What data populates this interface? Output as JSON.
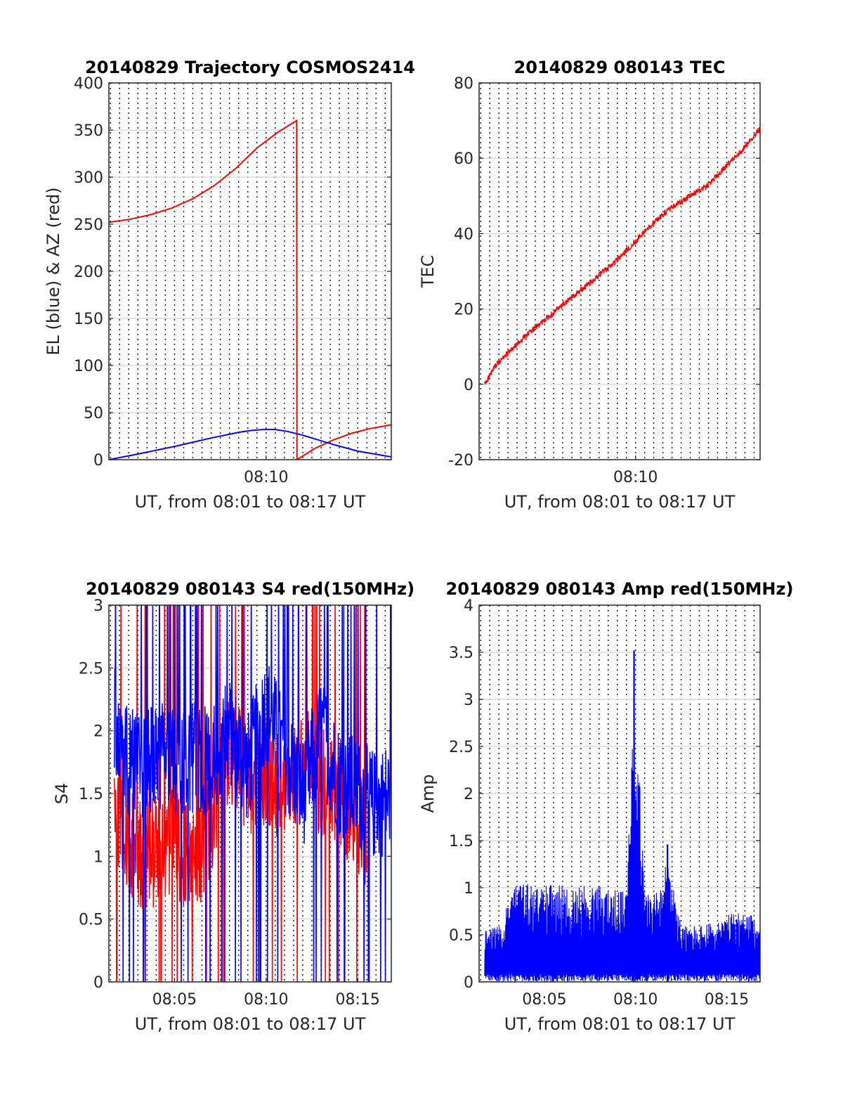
{
  "chart_data": [
    {
      "type": "line",
      "title": "20140829 Trajectory COSMOS2414",
      "xlabel": "UT, from 08:01 to 08:17 UT",
      "ylabel": "EL (blue) & AZ (red)",
      "xlim": [
        "08:01:25",
        "08:16:50"
      ],
      "ylim": [
        0,
        400
      ],
      "yticks": [
        0,
        50,
        100,
        150,
        200,
        250,
        300,
        350,
        400
      ],
      "xticks_labeled": [
        {
          "t": "08:10:00",
          "label": "08:10"
        }
      ],
      "grid": true,
      "series": [
        {
          "color": "#ff0000",
          "x": [
            "08:01:25",
            "08:02:30",
            "08:03:40",
            "08:04:50",
            "08:06:00",
            "08:07:10",
            "08:08:20",
            "08:09:30",
            "08:10:40",
            "08:11:40",
            "08:11:41"
          ],
          "y": [
            252,
            255,
            260,
            267,
            277,
            291,
            309,
            331,
            348,
            360,
            0
          ]
        },
        {
          "color": "#ff0000",
          "x": [
            "08:11:41",
            "08:12:40",
            "08:13:40",
            "08:14:40",
            "08:15:40",
            "08:16:50"
          ],
          "y": [
            0,
            12,
            21,
            28,
            33,
            37
          ]
        },
        {
          "color": "#0000ff",
          "x": [
            "08:01:25",
            "08:03:00",
            "08:05:00",
            "08:07:00",
            "08:08:30",
            "08:09:10",
            "08:09:50",
            "08:10:30",
            "08:11:10",
            "08:12:00",
            "08:13:30",
            "08:15:00",
            "08:16:50"
          ],
          "y": [
            0,
            6,
            14,
            23,
            29,
            31,
            32,
            32,
            30,
            26,
            17,
            9,
            3
          ]
        }
      ]
    },
    {
      "type": "line",
      "title": "20140829 080143 TEC",
      "xlabel": "UT, from 08:01 to 08:17 UT",
      "ylabel": "TEC",
      "xlim": [
        "08:01:25",
        "08:16:50"
      ],
      "ylim": [
        -20,
        80
      ],
      "yticks": [
        -20,
        0,
        20,
        40,
        60,
        80
      ],
      "xticks_labeled": [
        {
          "t": "08:10:00",
          "label": "08:10"
        }
      ],
      "grid": true,
      "series": [
        {
          "color": "#ff0000",
          "x": [
            "08:01:43",
            "08:02:20",
            "08:03:10",
            "08:04:00",
            "08:05:00",
            "08:06:00",
            "08:07:00",
            "08:08:00",
            "08:09:00",
            "08:10:00",
            "08:11:00",
            "08:12:00",
            "08:13:00",
            "08:14:00",
            "08:15:00",
            "08:16:00",
            "08:16:50"
          ],
          "y": [
            0,
            5,
            9,
            13,
            17,
            21,
            25,
            29,
            33,
            38,
            43,
            47,
            50,
            53,
            58,
            63,
            68
          ]
        }
      ]
    },
    {
      "type": "line",
      "title": "20140829 080143 S4 red(150MHz)",
      "xlabel": "UT, from 08:01 to 08:17 UT",
      "ylabel": "S4",
      "xlim": [
        "08:01:25",
        "08:16:50"
      ],
      "ylim": [
        0,
        3
      ],
      "yticks": [
        0,
        0.5,
        1,
        1.5,
        2,
        2.5,
        3
      ],
      "xticks_labeled": [
        {
          "t": "08:05:00",
          "label": "08:05"
        },
        {
          "t": "08:10:00",
          "label": "08:10"
        },
        {
          "t": "08:15:00",
          "label": "08:15"
        }
      ],
      "grid": true,
      "series": [
        {
          "color": "#ff0000",
          "x": [
            "08:01:43",
            "08:02:20",
            "08:03:00",
            "08:04:00",
            "08:05:00",
            "08:06:00",
            "08:07:00",
            "08:08:00",
            "08:09:00",
            "08:10:00",
            "08:11:00",
            "08:12:00",
            "08:13:00",
            "08:14:00",
            "08:15:00",
            "08:15:30"
          ],
          "y": [
            1.4,
            1.2,
            1.0,
            1.05,
            1.1,
            0.9,
            1.3,
            1.9,
            1.6,
            1.7,
            1.5,
            1.8,
            1.6,
            1.5,
            1.3,
            1.2
          ]
        },
        {
          "color": "#0000ff",
          "x": [
            "08:01:43",
            "08:02:20",
            "08:03:00",
            "08:04:00",
            "08:05:00",
            "08:06:00",
            "08:07:00",
            "08:08:00",
            "08:09:00",
            "08:10:00",
            "08:11:00",
            "08:12:00",
            "08:13:00",
            "08:14:00",
            "08:15:00",
            "08:16:00",
            "08:16:50"
          ],
          "y": [
            2.1,
            1.8,
            1.7,
            1.8,
            1.75,
            1.8,
            1.75,
            2.0,
            1.7,
            2.2,
            1.8,
            1.5,
            2.0,
            1.6,
            1.5,
            1.4,
            1.5
          ]
        }
      ]
    },
    {
      "type": "line",
      "title": "20140829 080143 Amp red(150MHz)",
      "xlabel": "UT, from 08:01 to 08:17 UT",
      "ylabel": "Amp",
      "xlim": [
        "08:01:25",
        "08:16:50"
      ],
      "ylim": [
        0,
        4
      ],
      "yticks": [
        0,
        0.5,
        1,
        1.5,
        2,
        2.5,
        3,
        3.5,
        4
      ],
      "xticks_labeled": [
        {
          "t": "08:05:00",
          "label": "08:05"
        },
        {
          "t": "08:10:00",
          "label": "08:10"
        },
        {
          "t": "08:15:00",
          "label": "08:15"
        }
      ],
      "grid": true,
      "series": [
        {
          "color": "#0000ff",
          "x": [
            "08:01:43",
            "08:02:30",
            "08:03:30",
            "08:04:30",
            "08:05:30",
            "08:06:30",
            "08:07:30",
            "08:08:30",
            "08:09:30",
            "08:09:55",
            "08:10:30",
            "08:11:30",
            "08:11:45",
            "08:12:30",
            "08:13:30",
            "08:14:30",
            "08:15:30",
            "08:16:30",
            "08:16:50"
          ],
          "y": [
            0.55,
            0.6,
            1.1,
            1.0,
            1.05,
            1.0,
            1.05,
            1.0,
            0.95,
            3.52,
            0.95,
            1.0,
            1.46,
            0.6,
            0.6,
            0.65,
            0.75,
            0.7,
            0.6
          ]
        }
      ]
    }
  ]
}
